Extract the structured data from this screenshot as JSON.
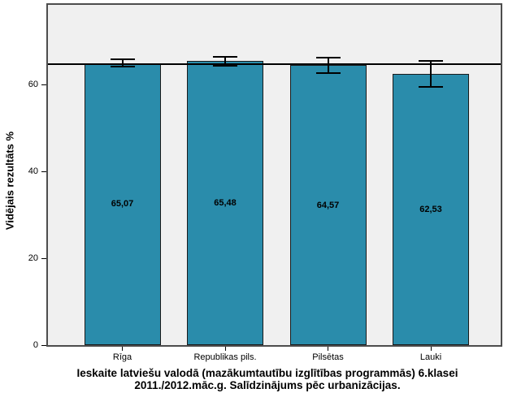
{
  "chart_data": {
    "type": "bar",
    "title_line1": "Ieskaite latviešu valodā (mazākumtautību izglītības programmās) 6.klasei",
    "title_line2": "2011./2012.māc.g. Salīdzinājums pēc urbanizācijas.",
    "ylabel": "Vidējais rezultāts %",
    "xlabel": "",
    "categories": [
      "Rīga",
      "Republikas pils.",
      "Pilsētas",
      "Lauki"
    ],
    "values": [
      65.07,
      65.48,
      64.57,
      62.53
    ],
    "value_labels": [
      "65,07",
      "65,48",
      "64,57",
      "62,53"
    ],
    "error_bars": [
      0.85,
      0.95,
      1.8,
      3.0
    ],
    "reference_line": 64.9,
    "yticks": [
      0,
      20,
      40,
      60
    ],
    "ytick_labels": [
      "0",
      "20",
      "40",
      "60"
    ],
    "ylim": [
      0,
      78.5
    ],
    "grid": false,
    "legend": null,
    "colors": {
      "bar_fill": "#2A8CAB",
      "bar_border": "#1A1A1A",
      "plot_background": "#F0F0F0",
      "plot_border": "#4D4D4D",
      "text": "#000000"
    }
  }
}
